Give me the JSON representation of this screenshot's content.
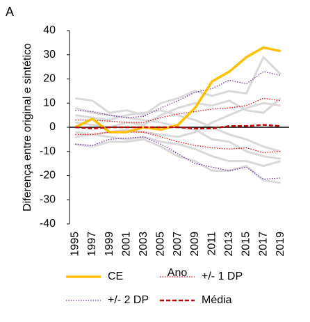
{
  "chart_data": {
    "type": "line",
    "panel_label": "A",
    "y_label": "Diferença entre original e sintético",
    "x_label": "Ano",
    "categories": [
      "1995",
      "1997",
      "1999",
      "2001",
      "2003",
      "2005",
      "2007",
      "2009",
      "2011",
      "2013",
      "2015",
      "2017",
      "2019"
    ],
    "ylim": [
      -40,
      40
    ],
    "yticks": [
      -40,
      -30,
      -20,
      -10,
      0,
      10,
      20,
      30,
      40
    ],
    "placebo_color": "#d9d9d9",
    "placebos": [
      [
        12,
        11,
        6,
        7,
        5,
        10,
        12,
        15,
        13,
        15,
        14,
        29,
        22
      ],
      [
        -7,
        -8,
        -6,
        -6,
        -5,
        -8,
        -12,
        -14,
        -18,
        -18,
        -16,
        -22,
        -23
      ],
      [
        5,
        4,
        3,
        5,
        6,
        7,
        5,
        3,
        0,
        -3,
        -5,
        -8,
        -10
      ],
      [
        -4,
        -3,
        -2,
        -1,
        -2,
        -3,
        -4,
        -2,
        2,
        5,
        8,
        10,
        9
      ],
      [
        2,
        1,
        0,
        2,
        1,
        5,
        8,
        10,
        9,
        11,
        7,
        6,
        12
      ],
      [
        -2,
        -3,
        -4,
        -5,
        -4,
        -6,
        -7,
        -9,
        -12,
        -14,
        -14,
        -16,
        -14
      ],
      [
        8,
        6,
        5,
        4,
        3,
        2,
        0,
        -1,
        -5,
        -6,
        -10,
        -12,
        -13
      ]
    ],
    "series": [
      {
        "name": "CE",
        "color": "#ffc000",
        "style": "solid",
        "values": [
          0,
          3.5,
          -2,
          -2,
          0,
          -1,
          1,
          8,
          19,
          23,
          29,
          33,
          31.5
        ]
      },
      {
        "name": "+/- 1 DP",
        "color": "#ff0000",
        "style": "dotted",
        "upper": [
          3,
          3,
          2.5,
          2,
          2,
          4,
          5.5,
          6.5,
          7.5,
          8,
          9,
          12,
          11
        ],
        "lower": [
          -3,
          -3,
          -2,
          -2,
          -2,
          -4,
          -6,
          -7.5,
          -8.5,
          -9,
          -8.5,
          -10.5,
          -10
        ]
      },
      {
        "name": "+/- 2 DP",
        "color": "#7030a0",
        "style": "dotted",
        "upper": [
          7,
          6.5,
          5,
          4,
          4.5,
          8,
          11,
          14.5,
          16,
          19.5,
          18,
          23,
          21.5
        ],
        "lower": [
          -7,
          -7.5,
          -5,
          -4.5,
          -4,
          -7,
          -11,
          -15,
          -16.5,
          -18,
          -16.5,
          -21.5,
          -21
        ]
      },
      {
        "name": "Média",
        "color": "#c00000",
        "style": "dashed",
        "values": [
          0,
          -0.5,
          0,
          0,
          0,
          0,
          0,
          -0.5,
          -0.5,
          0.5,
          0.5,
          1,
          0.5
        ]
      }
    ]
  }
}
